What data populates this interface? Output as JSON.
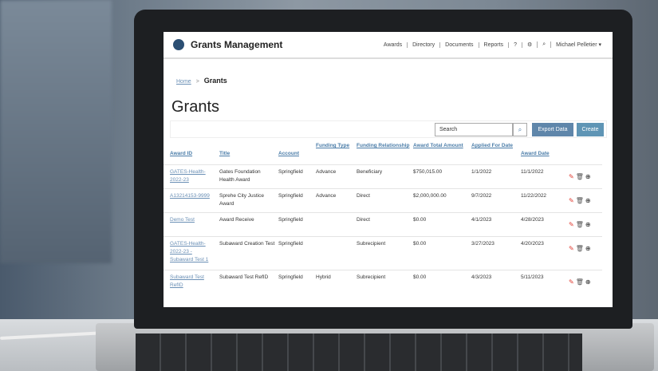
{
  "header": {
    "brand": "Grants Management",
    "nav": [
      "Awards",
      "Directory",
      "Documents",
      "Reports"
    ],
    "help_icon": "?",
    "settings_icon": "⚙",
    "search_icon": "⌕",
    "user": "Michael Pelletier ▾"
  },
  "breadcrumb": {
    "home": "Home",
    "separator": ">",
    "current": "Grants"
  },
  "page_title": "Grants",
  "toolbar": {
    "search_placeholder": "Search",
    "search_icon": "⌕",
    "export_label": "Export Data",
    "create_label": "Create"
  },
  "table": {
    "columns": [
      "Award ID",
      "Title",
      "Account",
      "Funding Type",
      "Funding Relationship",
      "Award Total Amount",
      "Applied For Date",
      "Award Date"
    ],
    "rows": [
      [
        "GATES-Health-2022-23",
        "Gates Foundation Health Award",
        "Springfield",
        "Advance",
        "Beneficiary",
        "$750,015.00",
        "1/1/2022",
        "11/1/2022"
      ],
      [
        "A13214153-9999",
        "Sprehe City Justice Award",
        "Springfield",
        "Advance",
        "Direct",
        "$2,000,000.00",
        "9/7/2022",
        "11/22/2022"
      ],
      [
        "Demo Test",
        "Award Receive",
        "Springfield",
        "",
        "Direct",
        "$0.00",
        "4/1/2023",
        "4/28/2023"
      ],
      [
        "GATES-Health-2022-23 - Subaward Test 1",
        "Subaward Creation Test",
        "Springfield",
        "",
        "Subrecipient",
        "$0.00",
        "3/27/2023",
        "4/20/2023"
      ],
      [
        "Subaward Test RefID",
        "Subaward Test RefID",
        "Springfield",
        "Hybrid",
        "Subrecipient",
        "$0.00",
        "4/3/2023",
        "5/11/2023"
      ]
    ],
    "action_icons": {
      "edit": "✎",
      "delete": "🗑",
      "add": "⊕"
    }
  },
  "colors": {
    "accent": "#5f86aa",
    "link": "#6a8fb5",
    "edit": "#e03a2f"
  }
}
